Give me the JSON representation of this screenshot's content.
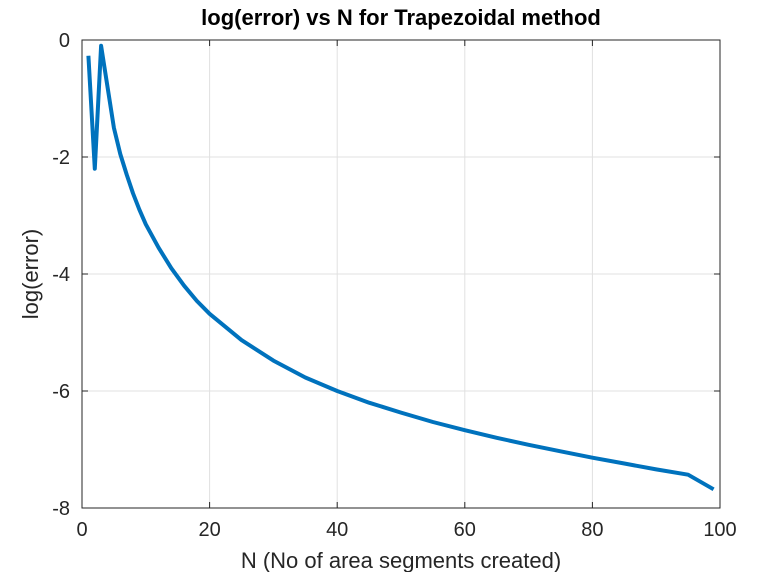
{
  "chart_data": {
    "type": "line",
    "title": "log(error) vs N for Trapezoidal method",
    "xlabel": "N (No of area segments created)",
    "ylabel": "log(error)",
    "xlim": [
      0,
      100
    ],
    "ylim": [
      -8,
      0
    ],
    "x_ticks": [
      "0",
      "20",
      "40",
      "60",
      "80",
      "100"
    ],
    "y_ticks": [
      "0",
      "-2",
      "-4",
      "-6",
      "-8"
    ],
    "grid": true,
    "line_color": "#0072BD",
    "series": [
      {
        "x": [
          1,
          2,
          3,
          4,
          5,
          6,
          7,
          8,
          9,
          10,
          12,
          14,
          16,
          18,
          20,
          25,
          30,
          35,
          40,
          45,
          50,
          55,
          60,
          65,
          70,
          75,
          80,
          85,
          90,
          95,
          99
        ],
        "y": [
          -0.27,
          -2.2,
          -0.1,
          -0.8,
          -1.5,
          -1.95,
          -2.3,
          -2.62,
          -2.9,
          -3.15,
          -3.55,
          -3.9,
          -4.2,
          -4.46,
          -4.68,
          -5.13,
          -5.48,
          -5.77,
          -6.0,
          -6.2,
          -6.37,
          -6.53,
          -6.67,
          -6.8,
          -6.92,
          -7.03,
          -7.14,
          -7.24,
          -7.34,
          -7.43,
          -7.68
        ]
      }
    ]
  }
}
